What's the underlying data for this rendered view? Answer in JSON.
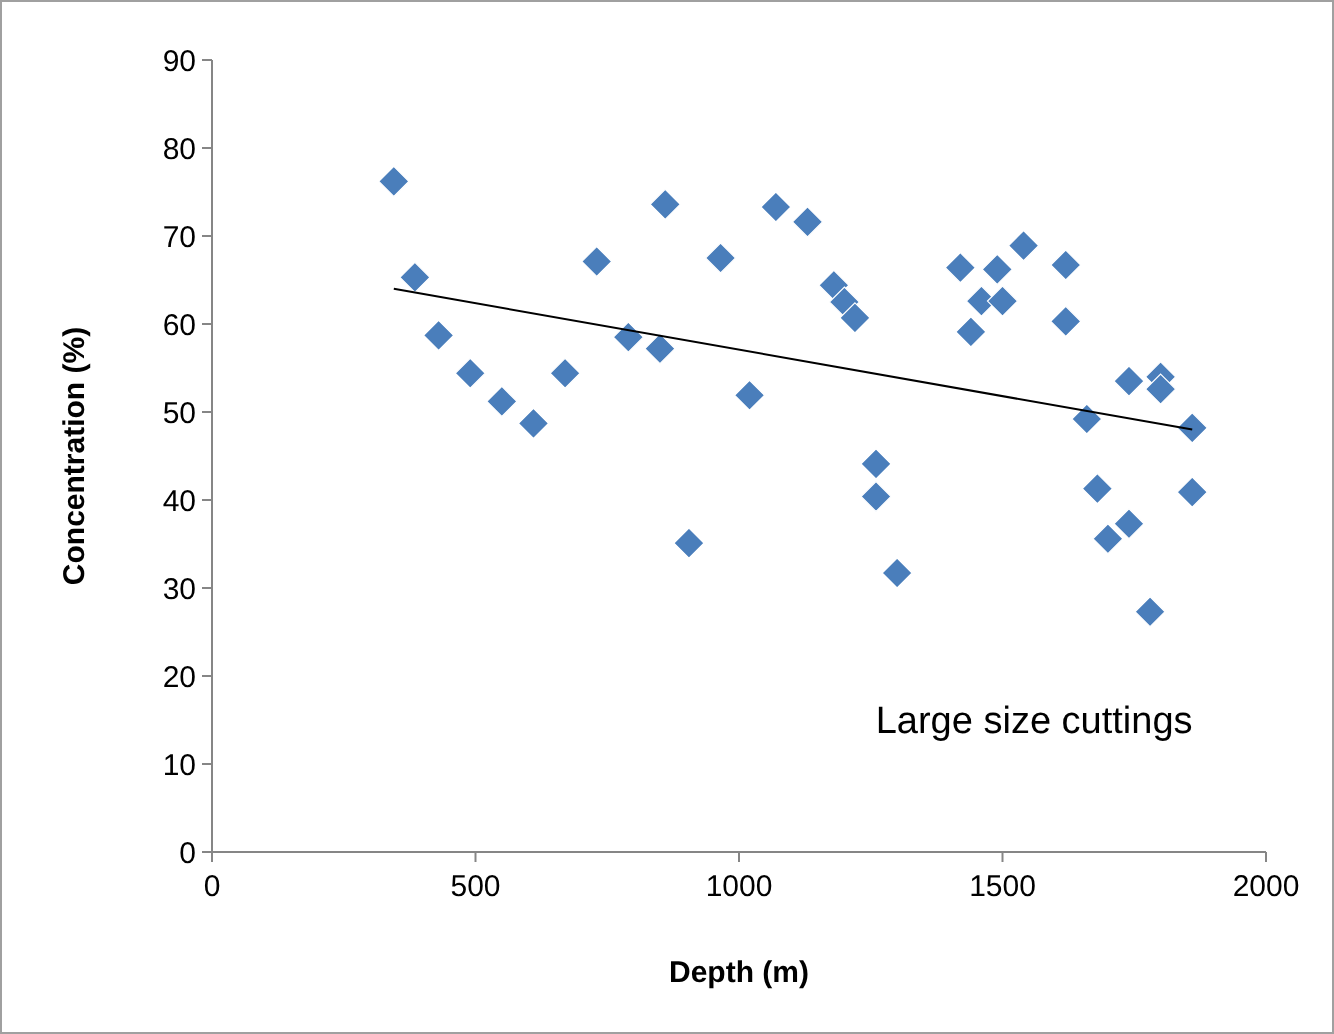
{
  "chart_data": {
    "type": "scatter",
    "xlabel": "Depth (m)",
    "ylabel": "Concentration (%)",
    "marker": "diamond",
    "grid": false,
    "annotations": [
      "Large size cuttings"
    ],
    "xlim": [
      0,
      2000
    ],
    "xticks": [
      0,
      500,
      1000,
      1500,
      2000
    ],
    "ylim": [
      0,
      90
    ],
    "yticks": [
      0,
      10,
      20,
      30,
      40,
      50,
      60,
      70,
      80,
      90
    ],
    "series": [
      {
        "color": "#4a7ebb",
        "x": [
          345,
          385,
          430,
          490,
          550,
          610,
          670,
          730,
          790,
          850,
          860,
          905,
          965,
          1020,
          1070,
          1130,
          1180,
          1200,
          1220,
          1260,
          1260,
          1300,
          1420,
          1440,
          1460,
          1490,
          1500,
          1540,
          1620,
          1620,
          1660,
          1680,
          1700,
          1740,
          1740,
          1780,
          1800,
          1800,
          1860,
          1860
        ],
        "values": [
          76.2,
          65.3,
          58.7,
          54.4,
          51.2,
          48.7,
          54.4,
          67.1,
          58.5,
          57.2,
          73.6,
          35.1,
          67.5,
          51.9,
          73.3,
          71.6,
          64.4,
          62.5,
          60.7,
          44.1,
          40.4,
          31.7,
          66.4,
          59.1,
          62.6,
          66.2,
          62.6,
          68.9,
          66.7,
          60.3,
          49.2,
          41.3,
          35.6,
          53.5,
          37.3,
          27.3,
          54.0,
          52.6,
          48.2,
          40.9
        ]
      },
      {
        "type": "line",
        "color": "#000000",
        "marker": "none",
        "x": [
          345,
          1860
        ],
        "values": [
          64,
          48
        ]
      }
    ]
  }
}
